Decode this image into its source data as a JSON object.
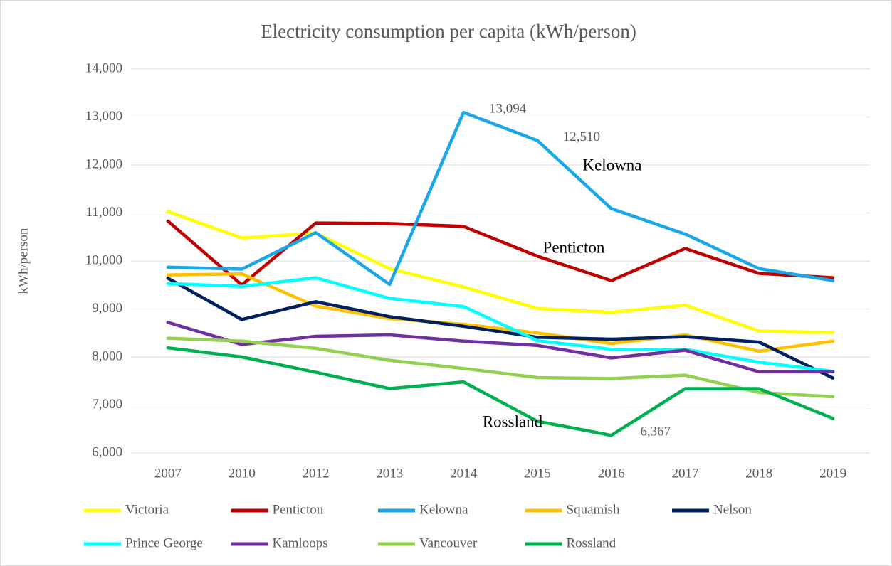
{
  "chart_data": {
    "type": "line",
    "title": "Electricity consumption per capita (kWh/person)",
    "y_label": "kWh/person",
    "categories": [
      "2007",
      "2010",
      "2012",
      "2013",
      "2014",
      "2015",
      "2016",
      "2017",
      "2018",
      "2019"
    ],
    "ylim": [
      6000,
      14000
    ],
    "yticks": [
      {
        "value": 6000,
        "label": "6,000"
      },
      {
        "value": 7000,
        "label": "7,000"
      },
      {
        "value": 8000,
        "label": "8,000"
      },
      {
        "value": 9000,
        "label": "9,000"
      },
      {
        "value": 10000,
        "label": "10,000"
      },
      {
        "value": 11000,
        "label": "11,000"
      },
      {
        "value": 12000,
        "label": "12,000"
      },
      {
        "value": 13000,
        "label": "13,000"
      },
      {
        "value": 14000,
        "label": "14,000"
      }
    ],
    "grid": true,
    "legend": "bottom",
    "series": [
      {
        "name": "Victoria",
        "color": "#ffff00",
        "values": [
          11030,
          10480,
          10580,
          9840,
          9460,
          9010,
          8930,
          9080,
          8540,
          8510
        ]
      },
      {
        "name": "Penticton",
        "color": "#c00000",
        "values": [
          10830,
          9500,
          10790,
          10780,
          10720,
          10100,
          9590,
          10260,
          9740,
          9650
        ]
      },
      {
        "name": "Kelowna",
        "color": "#1aa7e8",
        "values": [
          9870,
          9830,
          10590,
          9510,
          13094,
          12510,
          11090,
          10560,
          9840,
          9590
        ],
        "value_labels": [
          null,
          null,
          null,
          null,
          "13,094",
          "12,510",
          null,
          null,
          null,
          null
        ]
      },
      {
        "name": "Squamish",
        "color": "#ffc000",
        "values": [
          9710,
          9730,
          9060,
          8800,
          8680,
          8500,
          8280,
          8460,
          8120,
          8330
        ]
      },
      {
        "name": "Nelson",
        "color": "#002060",
        "values": [
          9640,
          8780,
          9150,
          8840,
          8640,
          8410,
          8370,
          8420,
          8310,
          7560
        ]
      },
      {
        "name": "Prince George",
        "color": "#00ffff",
        "values": [
          9530,
          9470,
          9650,
          9220,
          9050,
          8340,
          8160,
          8160,
          7890,
          7700
        ]
      },
      {
        "name": "Kamloops",
        "color": "#7030a0",
        "values": [
          8720,
          8260,
          8430,
          8460,
          8330,
          8240,
          7980,
          8140,
          7690,
          7690
        ]
      },
      {
        "name": "Vancouver",
        "color": "#92d050",
        "values": [
          8390,
          8330,
          8180,
          7930,
          7760,
          7570,
          7550,
          7620,
          7260,
          7170
        ]
      },
      {
        "name": "Rossland",
        "color": "#00b050",
        "values": [
          8190,
          8000,
          7680,
          7340,
          7480,
          6660,
          6367,
          7340,
          7340,
          6720
        ],
        "value_labels": [
          null,
          null,
          null,
          null,
          null,
          null,
          "6,367",
          null,
          null,
          null
        ]
      }
    ]
  }
}
